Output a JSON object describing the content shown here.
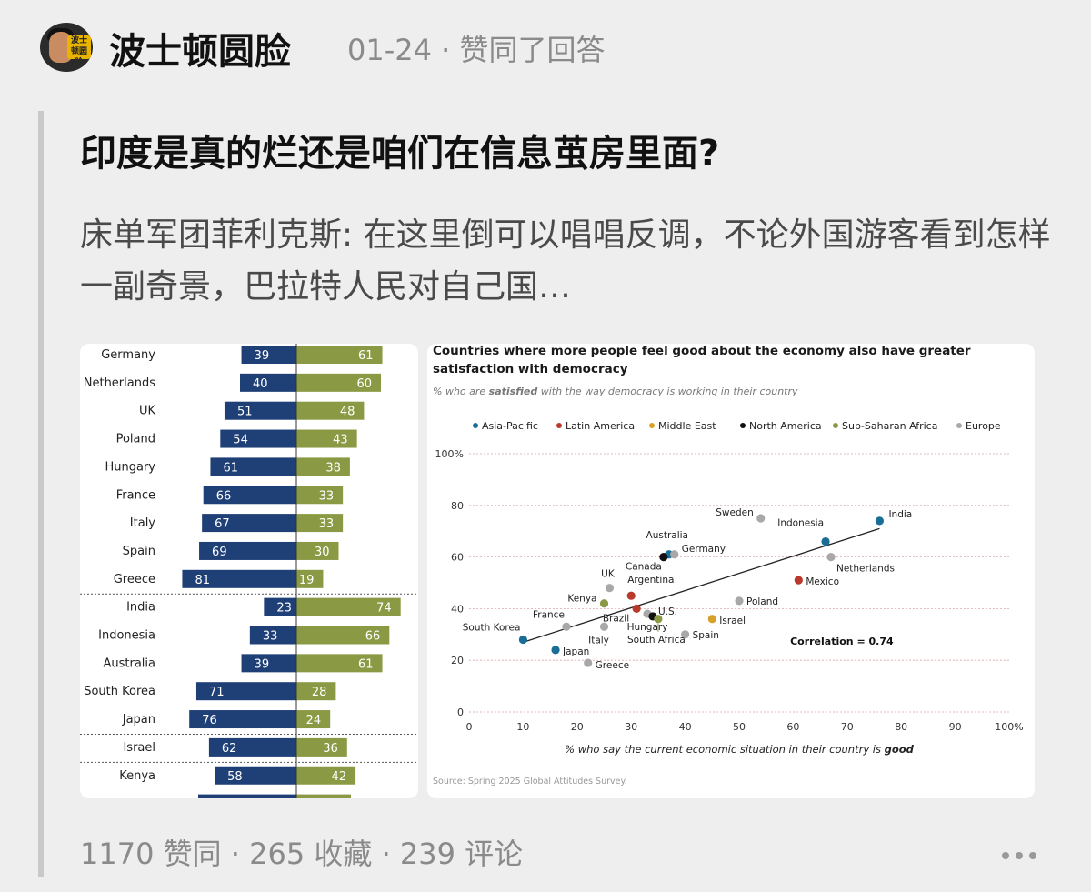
{
  "header": {
    "author": "波士顿圆脸",
    "avatar_badge": "波士顿圆脸",
    "date": "01-24",
    "action": "赞同了回答"
  },
  "question": {
    "title": "印度是真的烂还是咱们在信息茧房里面?"
  },
  "answer": {
    "excerpt": "床单军团菲利克斯: 在这里倒可以唱唱反调，不论外国游客看到怎样一副奇景，巴拉特人民对自己国…"
  },
  "colors": {
    "dissatisfied": "#1f3f77",
    "satisfied": "#8a9a44",
    "Asia-Pacific": "#1a6e95",
    "Latin America": "#b83a2d",
    "Middle East": "#d8a22a",
    "North America": "#111111",
    "Sub-Saharan Africa": "#8a9a44",
    "Europe": "#a8a8a8"
  },
  "chart_data": [
    {
      "type": "bar",
      "categories": [
        "Germany",
        "Netherlands",
        "UK",
        "Poland",
        "Hungary",
        "France",
        "Italy",
        "Spain",
        "Greece",
        "India",
        "Indonesia",
        "Australia",
        "South Korea",
        "Japan",
        "Israel",
        "Kenya"
      ],
      "series": [
        {
          "values": [
            39,
            40,
            51,
            54,
            61,
            66,
            67,
            69,
            81,
            23,
            33,
            39,
            71,
            76,
            62,
            58
          ]
        },
        {
          "values": [
            61,
            60,
            48,
            43,
            38,
            33,
            33,
            30,
            19,
            74,
            66,
            61,
            28,
            24,
            36,
            42
          ]
        }
      ],
      "groups": [
        9,
        5,
        1,
        1
      ]
    },
    {
      "type": "scatter",
      "title": "Countries where more people feel good about the economy also have greater satisfaction with democracy",
      "subtitle_parts": [
        "% who are ",
        "satisfied",
        " with the way democracy is working in their country"
      ],
      "xlabel_parts": [
        "% who say the current economic situation in their country is ",
        "good"
      ],
      "xlim": [
        0,
        100
      ],
      "ylim": [
        0,
        100
      ],
      "x_ticks": [
        "0",
        "10",
        "20",
        "30",
        "40",
        "50",
        "60",
        "70",
        "80",
        "90",
        "100%"
      ],
      "y_ticks": [
        "0",
        "20",
        "40",
        "60",
        "80",
        "100%"
      ],
      "legend": [
        "Asia-Pacific",
        "Latin America",
        "Middle East",
        "North America",
        "Sub-Saharan Africa",
        "Europe"
      ],
      "legend_position": "top",
      "points": [
        {
          "label": "India",
          "x": 76,
          "y": 74,
          "region": "Asia-Pacific"
        },
        {
          "label": "Indonesia",
          "x": 66,
          "y": 66,
          "region": "Asia-Pacific"
        },
        {
          "label": "Australia",
          "x": 37,
          "y": 61,
          "region": "Asia-Pacific"
        },
        {
          "label": "South Korea",
          "x": 10,
          "y": 28,
          "region": "Asia-Pacific"
        },
        {
          "label": "Japan",
          "x": 16,
          "y": 24,
          "region": "Asia-Pacific"
        },
        {
          "label": "Sweden",
          "x": 54,
          "y": 75,
          "region": "Europe"
        },
        {
          "label": "Germany",
          "x": 38,
          "y": 61,
          "region": "Europe"
        },
        {
          "label": "Netherlands",
          "x": 67,
          "y": 60,
          "region": "Europe"
        },
        {
          "label": "UK",
          "x": 26,
          "y": 48,
          "region": "Europe"
        },
        {
          "label": "Poland",
          "x": 50,
          "y": 43,
          "region": "Europe"
        },
        {
          "label": "France",
          "x": 18,
          "y": 33,
          "region": "Europe"
        },
        {
          "label": "Italy",
          "x": 25,
          "y": 33,
          "region": "Europe"
        },
        {
          "label": "Spain",
          "x": 40,
          "y": 30,
          "region": "Europe"
        },
        {
          "label": "Greece",
          "x": 22,
          "y": 19,
          "region": "Europe"
        },
        {
          "label": "Hungary",
          "x": 33,
          "y": 38,
          "region": "Europe"
        },
        {
          "label": "Canada",
          "x": 36,
          "y": 60,
          "region": "North America"
        },
        {
          "label": "U.S.",
          "x": 34,
          "y": 37,
          "region": "North America"
        },
        {
          "label": "Argentina",
          "x": 30,
          "y": 45,
          "region": "Latin America"
        },
        {
          "label": "Mexico",
          "x": 61,
          "y": 51,
          "region": "Latin America"
        },
        {
          "label": "Brazil",
          "x": 31,
          "y": 40,
          "region": "Latin America"
        },
        {
          "label": "Israel",
          "x": 45,
          "y": 36,
          "region": "Middle East"
        },
        {
          "label": "Kenya",
          "x": 25,
          "y": 42,
          "region": "Sub-Saharan Africa"
        },
        {
          "label": "South Africa",
          "x": 35,
          "y": 36,
          "region": "Sub-Saharan Africa"
        }
      ],
      "trendline": {
        "from": [
          10,
          27
        ],
        "to": [
          76,
          71
        ]
      },
      "annotation": "Correlation = 0.74",
      "source": "Source: Spring 2025 Global Attitudes Survey."
    }
  ],
  "footer": {
    "votes": "1170 赞同",
    "favorites": "265 收藏",
    "comments": "239 评论",
    "sep": "·"
  }
}
